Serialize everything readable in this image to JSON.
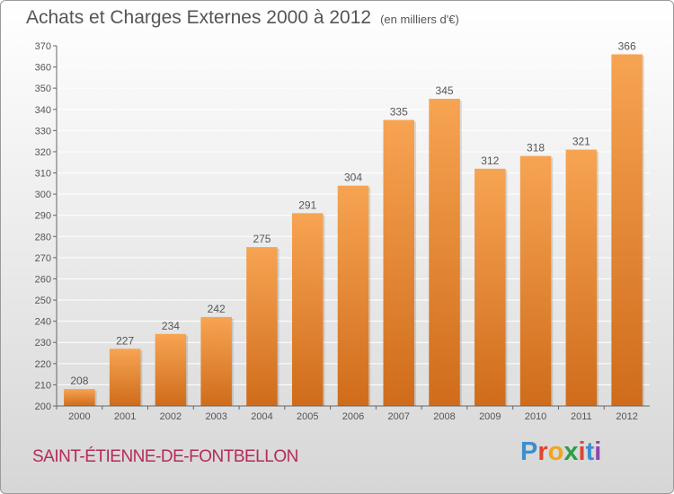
{
  "header": {
    "title": "Achats et Charges Externes 2000 à 2012",
    "unit": "(en milliers d'€)"
  },
  "footer": {
    "commune": "SAINT-ÉTIENNE-DE-FONTBELLON"
  },
  "brand": {
    "letters": [
      "P",
      "r",
      "o",
      "x",
      "i",
      "t",
      "i"
    ],
    "colors": [
      "#3a8fd0",
      "#e0442f",
      "#f2a51c",
      "#2f9e44",
      "#e0442f",
      "#3a8fd0",
      "#8e44ad"
    ]
  },
  "colors": {
    "bar_top": "#f7a452",
    "bar_bottom": "#cf6c1b",
    "grid": "#ffffff",
    "text": "#555555"
  },
  "chart_data": {
    "type": "bar",
    "categories": [
      "2000",
      "2001",
      "2002",
      "2003",
      "2004",
      "2005",
      "2006",
      "2007",
      "2008",
      "2009",
      "2010",
      "2011",
      "2012"
    ],
    "values": [
      208,
      227,
      234,
      242,
      275,
      291,
      304,
      335,
      345,
      312,
      318,
      321,
      366
    ],
    "ylim": [
      200,
      370
    ],
    "yticks": [
      200,
      210,
      220,
      230,
      240,
      250,
      260,
      270,
      280,
      290,
      300,
      310,
      320,
      330,
      340,
      350,
      360,
      370
    ],
    "grid": true,
    "data_labels": true
  }
}
